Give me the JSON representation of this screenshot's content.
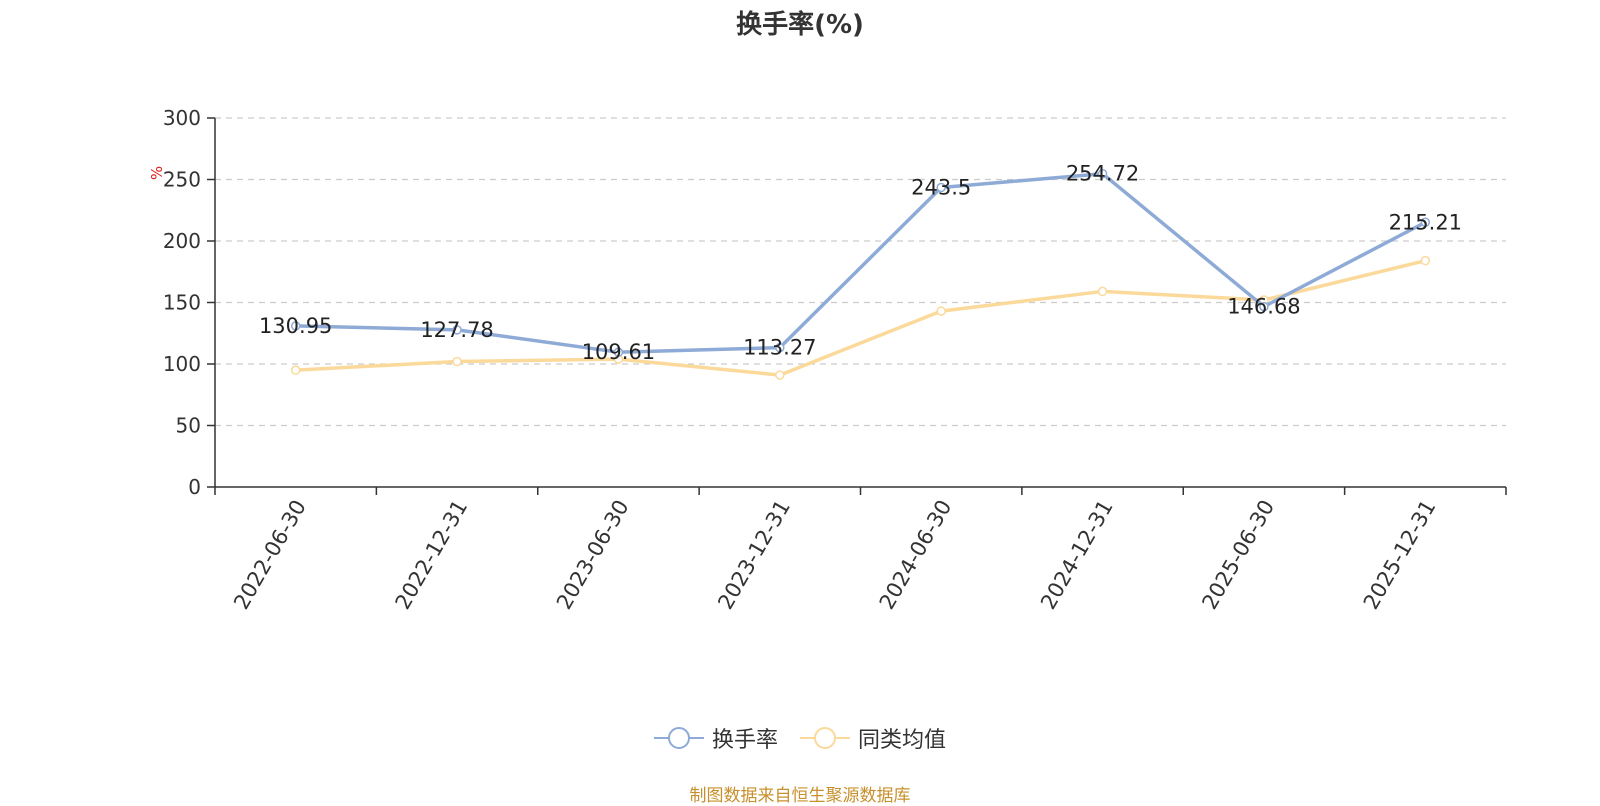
{
  "chart_data": {
    "type": "line",
    "title": "换手率(%)",
    "ylabel": "%",
    "ylim": [
      0,
      300
    ],
    "yticks": [
      0,
      50,
      100,
      150,
      200,
      250,
      300
    ],
    "categories": [
      "2022-06-30",
      "2022-12-31",
      "2023-06-30",
      "2023-12-31",
      "2024-06-30",
      "2024-12-31",
      "2025-06-30",
      "2025-12-31"
    ],
    "grid": true,
    "legend_position": "bottom",
    "series": [
      {
        "name": "换手率",
        "color": "#8eaad6",
        "values": [
          130.95,
          127.78,
          109.61,
          113.27,
          243.5,
          254.72,
          146.68,
          215.21
        ],
        "labels": [
          "130.95",
          "127.78",
          "109.61",
          "113.27",
          "243.5",
          "254.72",
          "146.68",
          "215.21"
        ]
      },
      {
        "name": "同类均值",
        "color": "#fbd99a",
        "values": [
          95,
          102,
          104,
          91,
          143,
          159,
          152,
          184
        ]
      }
    ]
  },
  "footer": {
    "source": "制图数据来自恒生聚源数据库",
    "source_color": "#c8902c"
  },
  "unit_color": "#e02020"
}
